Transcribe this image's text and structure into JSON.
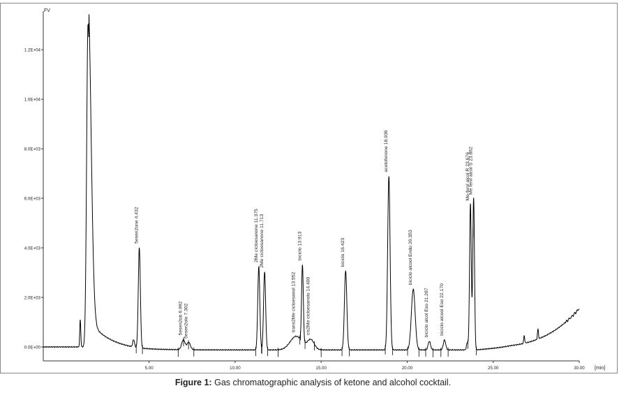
{
  "caption": {
    "label": "Figure 1:",
    "text": "Gas chromatographic analysis of ketone and alcohol cocktail."
  },
  "chart_data": {
    "type": "line",
    "title": "",
    "ylabel": "FV",
    "xlabel": "[min]",
    "xlim": [
      0,
      30
    ],
    "ylim": [
      0,
      1.35
    ],
    "x_ticks": [
      {
        "value": 5,
        "label": "5.00"
      },
      {
        "value": 10,
        "label": "10.00"
      },
      {
        "value": 15,
        "label": "15.00"
      },
      {
        "value": 20,
        "label": "20.00"
      },
      {
        "value": 25,
        "label": "25.00"
      },
      {
        "value": 30,
        "label": "30.00"
      }
    ],
    "y_ticks": [
      {
        "value": 0,
        "label": "0.0E+00"
      },
      {
        "value": 0.2,
        "label": "2.0E+03"
      },
      {
        "value": 0.4,
        "label": "4.0E+03"
      },
      {
        "value": 0.6,
        "label": "6.0E+03"
      },
      {
        "value": 0.8,
        "label": "8.0E+03"
      },
      {
        "value": 1.0,
        "label": "1.0E+04"
      },
      {
        "value": 1.2,
        "label": "1.2E+04"
      }
    ],
    "peaks": [
      {
        "rt": 1.0,
        "height": 0.11,
        "width": 0.03
      },
      {
        "rt": 1.45,
        "height": 1.3,
        "width": 0.08,
        "tail": true
      },
      {
        "rt": 4.1,
        "height": 0.03,
        "width": 0.05
      },
      {
        "rt": 4.432,
        "height": 0.405,
        "width": 0.06,
        "label": "5esen2one 4.432"
      },
      {
        "rt": 6.992,
        "height": 0.04,
        "width": 0.1,
        "label": "5esen2ob 6.992"
      },
      {
        "rt": 7.302,
        "height": 0.03,
        "width": 0.1,
        "label": "5esen2olo 7.302"
      },
      {
        "rt": 11.375,
        "height": 0.335,
        "width": 0.06,
        "label": "2Me cicloesanone 11.375"
      },
      {
        "rt": 11.713,
        "height": 0.315,
        "width": 0.06,
        "label": "2Me cicloesanone 11.713"
      },
      {
        "rt": 13.552,
        "height": 0.055,
        "width": 0.35,
        "label": "trans2Me cicloesanol 13.552"
      },
      {
        "rt": 13.913,
        "height": 0.31,
        "width": 0.05,
        "label": "biciclo 13.913"
      },
      {
        "rt": 14.4,
        "height": 0.04,
        "width": 0.2,
        "label": "cis2Me cicloesanolo 14.400"
      },
      {
        "rt": 16.423,
        "height": 0.32,
        "width": 0.07,
        "label": "biciclo 16.423"
      },
      {
        "rt": 18.936,
        "height": 0.7,
        "width": 0.07,
        "label": "acetofenone 18.936"
      },
      {
        "rt": 20.353,
        "height": 0.245,
        "width": 0.11,
        "label": "biciclo alcool Endo 20.353"
      },
      {
        "rt": 21.287,
        "height": 0.035,
        "width": 0.07,
        "label": "biciclo alcol Eso 21.287"
      },
      {
        "rt": 22.17,
        "height": 0.04,
        "width": 0.07,
        "label": "biciclo alcool Eso 22.170"
      },
      {
        "rt": 23.5,
        "height": 0.03,
        "width": 0.05
      },
      {
        "rt": 23.676,
        "height": 0.59,
        "width": 0.05,
        "label": "Me-fenil alcol R 23.676"
      },
      {
        "rt": 23.862,
        "height": 0.615,
        "width": 0.05,
        "label": "Me fenil alcol S 23.862"
      },
      {
        "rt": 26.8,
        "height": 0.03,
        "width": 0.03
      },
      {
        "rt": 27.6,
        "height": 0.04,
        "width": 0.03
      }
    ]
  }
}
